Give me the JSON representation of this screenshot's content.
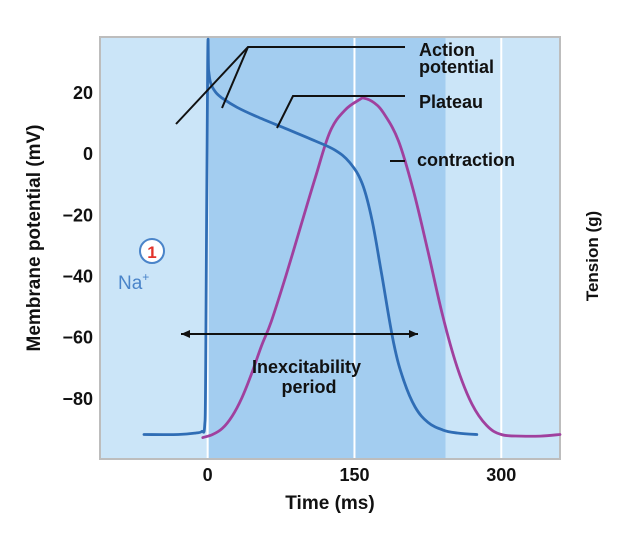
{
  "chart_data": {
    "type": "line",
    "title": "",
    "xlabel": "Time (ms)",
    "ylabel": "Membrane potential (mV)",
    "y2label": "Tension (g)",
    "xlim": [
      -110,
      360
    ],
    "ylim": [
      -100,
      38
    ],
    "xticks": [
      0,
      150,
      300
    ],
    "xtick_labels": [
      "0",
      "150",
      "300"
    ],
    "yticks": [
      20,
      0,
      -20,
      -40,
      -60,
      -80
    ],
    "ytick_labels": [
      "20",
      "0",
      "−20",
      "−40",
      "−60",
      "−80"
    ],
    "grid": true,
    "shaded_region": {
      "name": "Inexcitability period",
      "x_range": [
        0,
        243
      ]
    },
    "series": [
      {
        "name": "Action potential",
        "color": "#2f6db5",
        "x": [
          -65,
          -30,
          -12,
          -6,
          -3,
          -2,
          0,
          1,
          3,
          8,
          15,
          30,
          50,
          80,
          110,
          130,
          145,
          158,
          168,
          178,
          190,
          200,
          212,
          225,
          240,
          255,
          275
        ],
        "y": [
          -92,
          -92,
          -91.5,
          -91,
          -89,
          -70,
          30,
          27,
          23,
          20,
          18,
          15,
          12,
          8,
          4,
          1,
          -3,
          -10,
          -22,
          -40,
          -62,
          -74,
          -83,
          -88,
          -90.5,
          -91.5,
          -92
        ]
      },
      {
        "name": "Contraction",
        "color": "#a0409e",
        "x": [
          -5,
          5,
          15,
          25,
          35,
          45,
          55,
          65,
          80,
          95,
          110,
          125,
          140,
          155,
          160,
          170,
          180,
          195,
          210,
          225,
          240,
          255,
          270,
          285,
          300,
          320,
          340,
          360
        ],
        "y": [
          -93,
          -92,
          -90,
          -86,
          -80,
          -72,
          -63,
          -55,
          -40,
          -24,
          -8,
          7,
          14,
          17.5,
          18,
          16.5,
          13,
          4,
          -12,
          -32,
          -53,
          -70,
          -82,
          -89,
          -92,
          -92.5,
          -92.5,
          -92
        ]
      }
    ],
    "annotations": [
      {
        "text_lines": [
          "Action",
          "potential"
        ],
        "points_to": "Action potential"
      },
      {
        "text": "Plateau",
        "points_to": "Action potential"
      },
      {
        "text": "contraction",
        "points_to": "Contraction"
      },
      {
        "text_lines": [
          "Inexcitability",
          "period"
        ],
        "points_to": "Inexcitability period"
      },
      {
        "text": "Na",
        "superscript": "+",
        "step_number": "1"
      }
    ]
  },
  "colors": {
    "plot_background": "#cbe5f8",
    "inexcitability_shading": "#a3cdf0",
    "grid": "#ffffff",
    "axis_frame": "#bdbdbd",
    "action_potential": "#2f6db5",
    "contraction": "#a0409e",
    "na_label": "#4a84c9",
    "step_badge": "#e2332a",
    "text": "#111111"
  }
}
